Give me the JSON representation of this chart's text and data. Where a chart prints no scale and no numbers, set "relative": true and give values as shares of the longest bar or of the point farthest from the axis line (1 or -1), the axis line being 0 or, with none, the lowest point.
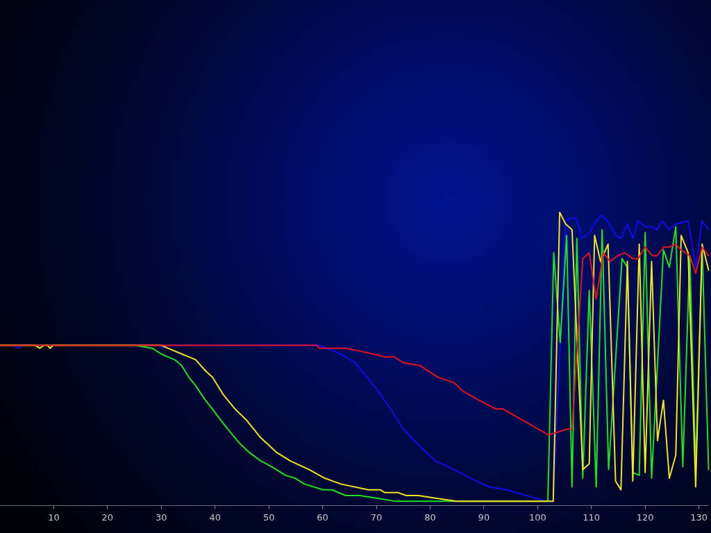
{
  "chart_data": {
    "type": "line",
    "relative": true,
    "marker": "none",
    "xlim": [
      0,
      131.8
    ],
    "xticks": [
      10,
      20,
      30,
      40,
      50,
      60,
      70,
      80,
      90,
      100,
      110,
      120,
      130
    ],
    "series": [
      {
        "color": "#e3141c",
        "x": [
          0,
          58.9,
          59.4,
          64.3,
          66.9,
          69.4,
          71.6,
          73.3,
          75.0,
          78.1,
          81.4,
          84.5,
          86.2,
          89.1,
          92.2,
          93.5,
          102.0,
          103.8,
          105.5,
          106.4,
          108.4,
          109.6,
          110.9,
          112.2,
          113.5,
          114.9,
          116.2,
          117.7,
          118.7,
          120.0,
          121.3,
          122.2,
          123.5,
          124.5,
          125.7,
          126.7,
          128.3,
          129.4,
          130.6,
          131.8
        ],
        "values": [
          0.54,
          0.54,
          0.53,
          0.53,
          0.52,
          0.51,
          0.5,
          0.5,
          0.48,
          0.47,
          0.43,
          0.41,
          0.38,
          0.35,
          0.32,
          0.32,
          0.23,
          0.24,
          0.25,
          0.25,
          0.84,
          0.86,
          0.7,
          0.86,
          0.83,
          0.85,
          0.86,
          0.84,
          0.84,
          0.88,
          0.85,
          0.85,
          0.88,
          0.88,
          0.89,
          0.87,
          0.85,
          0.79,
          0.88,
          0.85
        ]
      },
      {
        "color": "#f2e41e",
        "x": [
          0,
          6.5,
          7.4,
          8.2,
          8.8,
          9.3,
          9.9,
          30.0,
          31.2,
          33.8,
          35.1,
          36.4,
          38.3,
          39.5,
          41.5,
          43.7,
          45.9,
          48.5,
          51.4,
          54.0,
          57.5,
          60.4,
          63.4,
          68.5,
          70.7,
          71.6,
          74.0,
          75.6,
          77.8,
          81.4,
          84.9,
          91.0,
          91.7,
          102.9,
          104.1,
          105.2,
          106.4,
          108.4,
          109.6,
          110.6,
          111.7,
          113.1,
          114.5,
          115.5,
          116.7,
          117.7,
          118.9,
          120.0,
          121.2,
          122.3,
          123.4,
          124.5,
          125.7,
          126.7,
          128.0,
          129.4,
          130.6,
          131.8
        ],
        "values": [
          0.54,
          0.54,
          0.53,
          0.54,
          0.54,
          0.53,
          0.54,
          0.54,
          0.53,
          0.51,
          0.5,
          0.49,
          0.45,
          0.43,
          0.37,
          0.32,
          0.28,
          0.22,
          0.17,
          0.14,
          0.11,
          0.08,
          0.06,
          0.04,
          0.04,
          0.03,
          0.03,
          0.02,
          0.02,
          0.01,
          0.0,
          0.0,
          0.0,
          0.0,
          1.0,
          0.96,
          0.94,
          0.11,
          0.13,
          0.92,
          0.83,
          0.89,
          0.07,
          0.04,
          0.83,
          0.07,
          0.89,
          0.1,
          0.83,
          0.21,
          0.35,
          0.08,
          0.16,
          0.92,
          0.86,
          0.05,
          0.89,
          0.8
        ]
      },
      {
        "color": "#1fe01f",
        "x": [
          0,
          25.0,
          28.3,
          30.0,
          31.2,
          32.5,
          33.8,
          35.1,
          36.4,
          38.2,
          39.5,
          41.1,
          42.8,
          44.6,
          46.3,
          48.5,
          49.5,
          51.4,
          53.1,
          54.9,
          56.6,
          60.1,
          61.7,
          64.3,
          66.9,
          70.4,
          73.7,
          77.2,
          101.9,
          103.0,
          104.2,
          105.4,
          106.4,
          107.3,
          108.4,
          109.6,
          110.9,
          112.0,
          113.2,
          115.7,
          116.7,
          117.7,
          118.9,
          120.0,
          121.2,
          123.4,
          124.5,
          125.7,
          127.0,
          128.3,
          129.4,
          130.6,
          131.8
        ],
        "values": [
          0.54,
          0.54,
          0.53,
          0.51,
          0.5,
          0.49,
          0.47,
          0.43,
          0.4,
          0.35,
          0.32,
          0.28,
          0.24,
          0.2,
          0.17,
          0.14,
          0.13,
          0.11,
          0.09,
          0.08,
          0.06,
          0.04,
          0.04,
          0.02,
          0.02,
          0.01,
          0.0,
          0.0,
          0.0,
          0.86,
          0.55,
          0.92,
          0.05,
          0.91,
          0.08,
          0.73,
          0.05,
          0.94,
          0.11,
          0.84,
          0.81,
          0.1,
          0.09,
          0.93,
          0.08,
          0.87,
          0.81,
          0.95,
          0.12,
          0.85,
          0.11,
          0.88,
          0.11
        ]
      },
      {
        "color": "#0c0cee",
        "x": [
          0,
          2.5,
          3.4,
          4.3,
          29.5,
          30.3,
          31.1,
          59.4,
          60.8,
          63.4,
          66.0,
          67.8,
          70.4,
          73.0,
          75.0,
          78.1,
          81.0,
          84.5,
          87.5,
          91.0,
          94.3,
          101.6,
          102.9,
          105.2,
          106.1,
          107.2,
          108.3,
          109.6,
          110.9,
          111.9,
          113.0,
          114.5,
          115.5,
          116.7,
          117.7,
          118.7,
          120.0,
          121.2,
          122.2,
          123.2,
          124.5,
          125.7,
          128.0,
          129.4,
          130.6,
          131.8
        ],
        "values": [
          0.54,
          0.54,
          0.53,
          0.54,
          0.54,
          0.53,
          0.54,
          0.54,
          0.53,
          0.51,
          0.48,
          0.44,
          0.38,
          0.31,
          0.25,
          0.19,
          0.14,
          0.11,
          0.08,
          0.05,
          0.04,
          0.0,
          0.0,
          0.97,
          0.98,
          0.98,
          0.91,
          0.93,
          0.97,
          0.99,
          0.97,
          0.92,
          0.91,
          0.96,
          0.91,
          0.97,
          0.95,
          0.95,
          0.94,
          0.97,
          0.94,
          0.96,
          0.97,
          0.81,
          0.97,
          0.94
        ]
      }
    ]
  }
}
